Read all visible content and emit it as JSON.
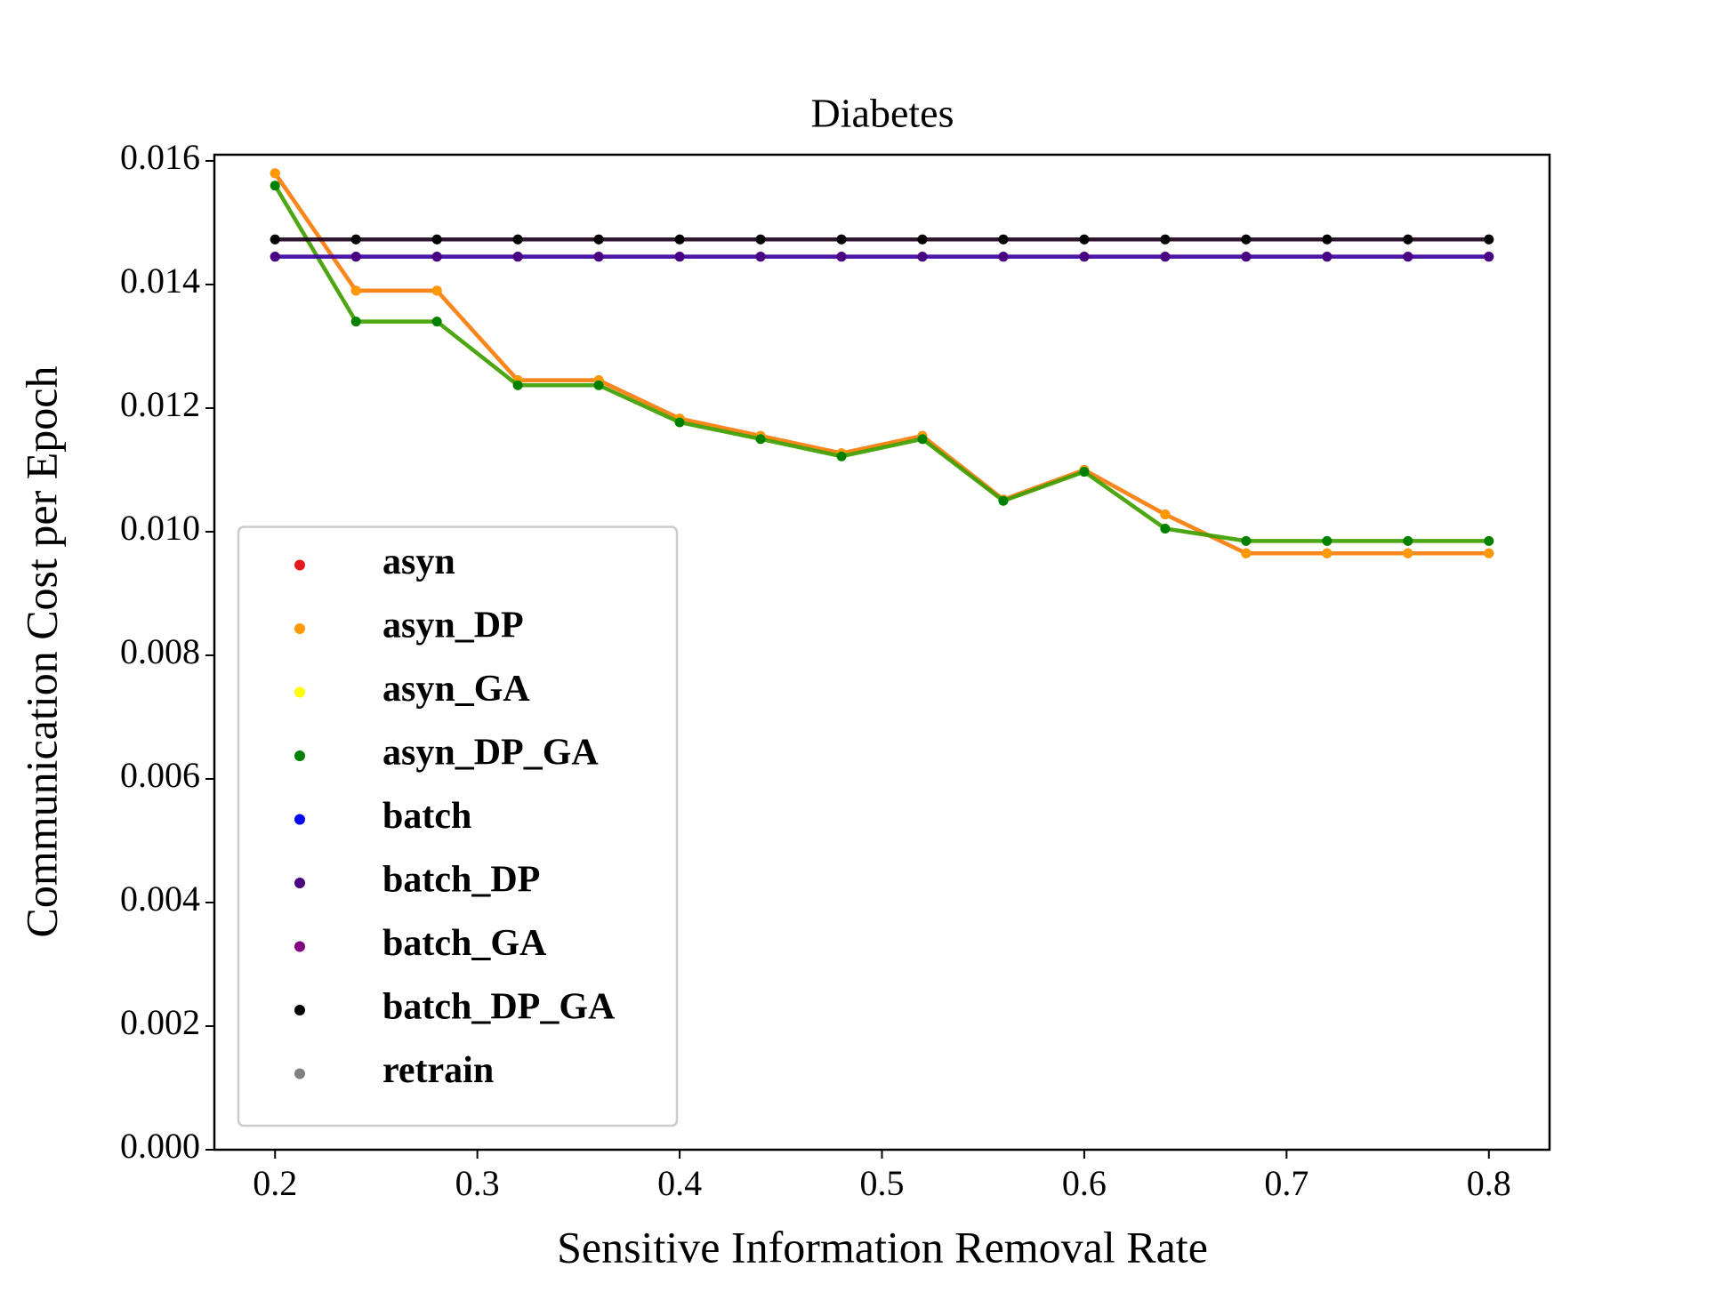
{
  "chart_data": {
    "type": "line",
    "title": "Diabetes",
    "xlabel": "Sensitive Information Removal Rate",
    "ylabel": "Communication Cost per Epoch",
    "x": [
      0.2,
      0.24,
      0.28,
      0.32,
      0.36,
      0.4,
      0.44,
      0.48,
      0.52,
      0.56,
      0.6,
      0.64,
      0.68,
      0.72,
      0.76,
      0.8
    ],
    "series": [
      {
        "name": "asyn",
        "color": "#e41a1c",
        "values": [
          0.0158,
          0.0139,
          0.0139,
          0.01245,
          0.01245,
          0.01183,
          0.01155,
          0.01127,
          0.01155,
          0.01052,
          0.011,
          0.01028,
          0.00965,
          0.00965,
          0.00965,
          0.00965
        ]
      },
      {
        "name": "asyn_DP",
        "color": "#ff9900",
        "values": [
          0.0158,
          0.0139,
          0.0139,
          0.01245,
          0.01245,
          0.01183,
          0.01155,
          0.01127,
          0.01155,
          0.01052,
          0.011,
          0.01028,
          0.00965,
          0.00965,
          0.00965,
          0.00965
        ]
      },
      {
        "name": "asyn_GA",
        "color": "#ffff00",
        "values": [
          0.0156,
          0.0134,
          0.0134,
          0.01237,
          0.01237,
          0.01177,
          0.0115,
          0.01122,
          0.0115,
          0.0105,
          0.01097,
          0.01005,
          0.00985,
          0.00985,
          0.00985,
          0.00985
        ]
      },
      {
        "name": "asyn_DP_GA",
        "color": "#008000",
        "values": [
          0.0156,
          0.0134,
          0.0134,
          0.01237,
          0.01237,
          0.01177,
          0.0115,
          0.01122,
          0.0115,
          0.0105,
          0.01097,
          0.01005,
          0.00985,
          0.00985,
          0.00985,
          0.00985
        ]
      },
      {
        "name": "batch",
        "color": "#0000ff",
        "values": [
          0.01445,
          0.01445,
          0.01445,
          0.01445,
          0.01445,
          0.01445,
          0.01445,
          0.01445,
          0.01445,
          0.01445,
          0.01445,
          0.01445,
          0.01445,
          0.01445,
          0.01445,
          0.01445
        ]
      },
      {
        "name": "batch_DP",
        "color": "#4b0082",
        "values": [
          0.01445,
          0.01445,
          0.01445,
          0.01445,
          0.01445,
          0.01445,
          0.01445,
          0.01445,
          0.01445,
          0.01445,
          0.01445,
          0.01445,
          0.01445,
          0.01445,
          0.01445,
          0.01445
        ]
      },
      {
        "name": "batch_GA",
        "color": "#800080",
        "values": [
          0.01473,
          0.01473,
          0.01473,
          0.01473,
          0.01473,
          0.01473,
          0.01473,
          0.01473,
          0.01473,
          0.01473,
          0.01473,
          0.01473,
          0.01473,
          0.01473,
          0.01473,
          0.01473
        ]
      },
      {
        "name": "batch_DP_GA",
        "color": "#000000",
        "values": [
          0.01473,
          0.01473,
          0.01473,
          0.01473,
          0.01473,
          0.01473,
          0.01473,
          0.01473,
          0.01473,
          0.01473,
          0.01473,
          0.01473,
          0.01473,
          0.01473,
          0.01473,
          0.01473
        ]
      },
      {
        "name": "retrain",
        "color": "#808080",
        "values": [
          null,
          null,
          null,
          null,
          null,
          null,
          null,
          null,
          null,
          null,
          null,
          null,
          null,
          null,
          null,
          null
        ]
      }
    ],
    "xlim": [
      0.17,
      0.83
    ],
    "xticks": [
      0.2,
      0.3,
      0.4,
      0.5,
      0.6,
      0.7,
      0.8
    ],
    "ylim": [
      0,
      0.0161
    ],
    "yticks": [
      {
        "value": 0,
        "label": "0.000"
      },
      {
        "value": 0.002,
        "label": "0.002"
      },
      {
        "value": 0.004,
        "label": "0.004"
      },
      {
        "value": 0.006,
        "label": "0.006"
      },
      {
        "value": 0.008,
        "label": "0.008"
      },
      {
        "value": 0.01,
        "label": "0.010"
      },
      {
        "value": 0.012,
        "label": "0.012"
      },
      {
        "value": 0.014,
        "label": "0.014"
      },
      {
        "value": 0.016,
        "label": "0.016"
      }
    ],
    "grid": false,
    "legend": "lower left"
  }
}
